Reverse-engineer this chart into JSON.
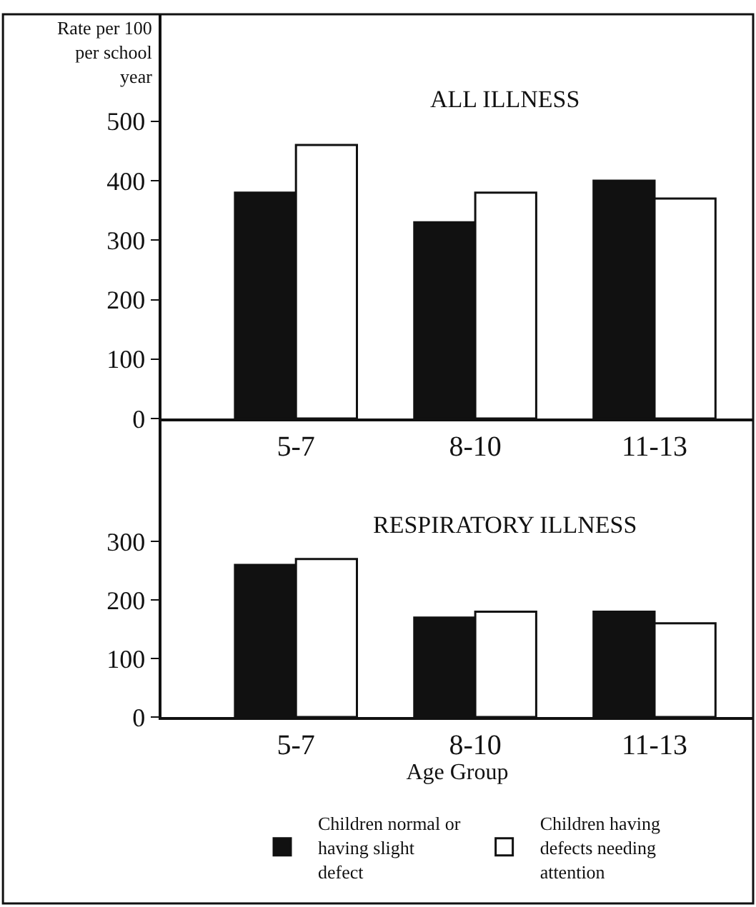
{
  "chart_data": [
    {
      "type": "bar",
      "title": "ALL ILLNESS",
      "ylabel": "Rate per 100 per school year",
      "categories": [
        "5-7",
        "8-10",
        "11-13"
      ],
      "series": [
        {
          "color": "#111111",
          "values": [
            380,
            330,
            400
          ]
        },
        {
          "color": "#ffffff",
          "values": [
            460,
            380,
            370
          ]
        }
      ],
      "ylim": [
        0,
        680
      ],
      "yticks": [
        0,
        100,
        200,
        300,
        400,
        500
      ],
      "grid": false
    },
    {
      "type": "bar",
      "title": "RESPIRATORY ILLNESS",
      "xlabel": "Age Group",
      "categories": [
        "5-7",
        "8-10",
        "11-13"
      ],
      "series": [
        {
          "name": "Children normal or having slight defect",
          "color": "#111111",
          "values": [
            260,
            170,
            180
          ]
        },
        {
          "name": "Children having defects needing attention",
          "color": "#ffffff",
          "values": [
            270,
            180,
            160
          ]
        }
      ],
      "ylim": [
        0,
        510
      ],
      "yticks": [
        0,
        100,
        200,
        300
      ],
      "grid": false,
      "legend": "bottom"
    }
  ]
}
